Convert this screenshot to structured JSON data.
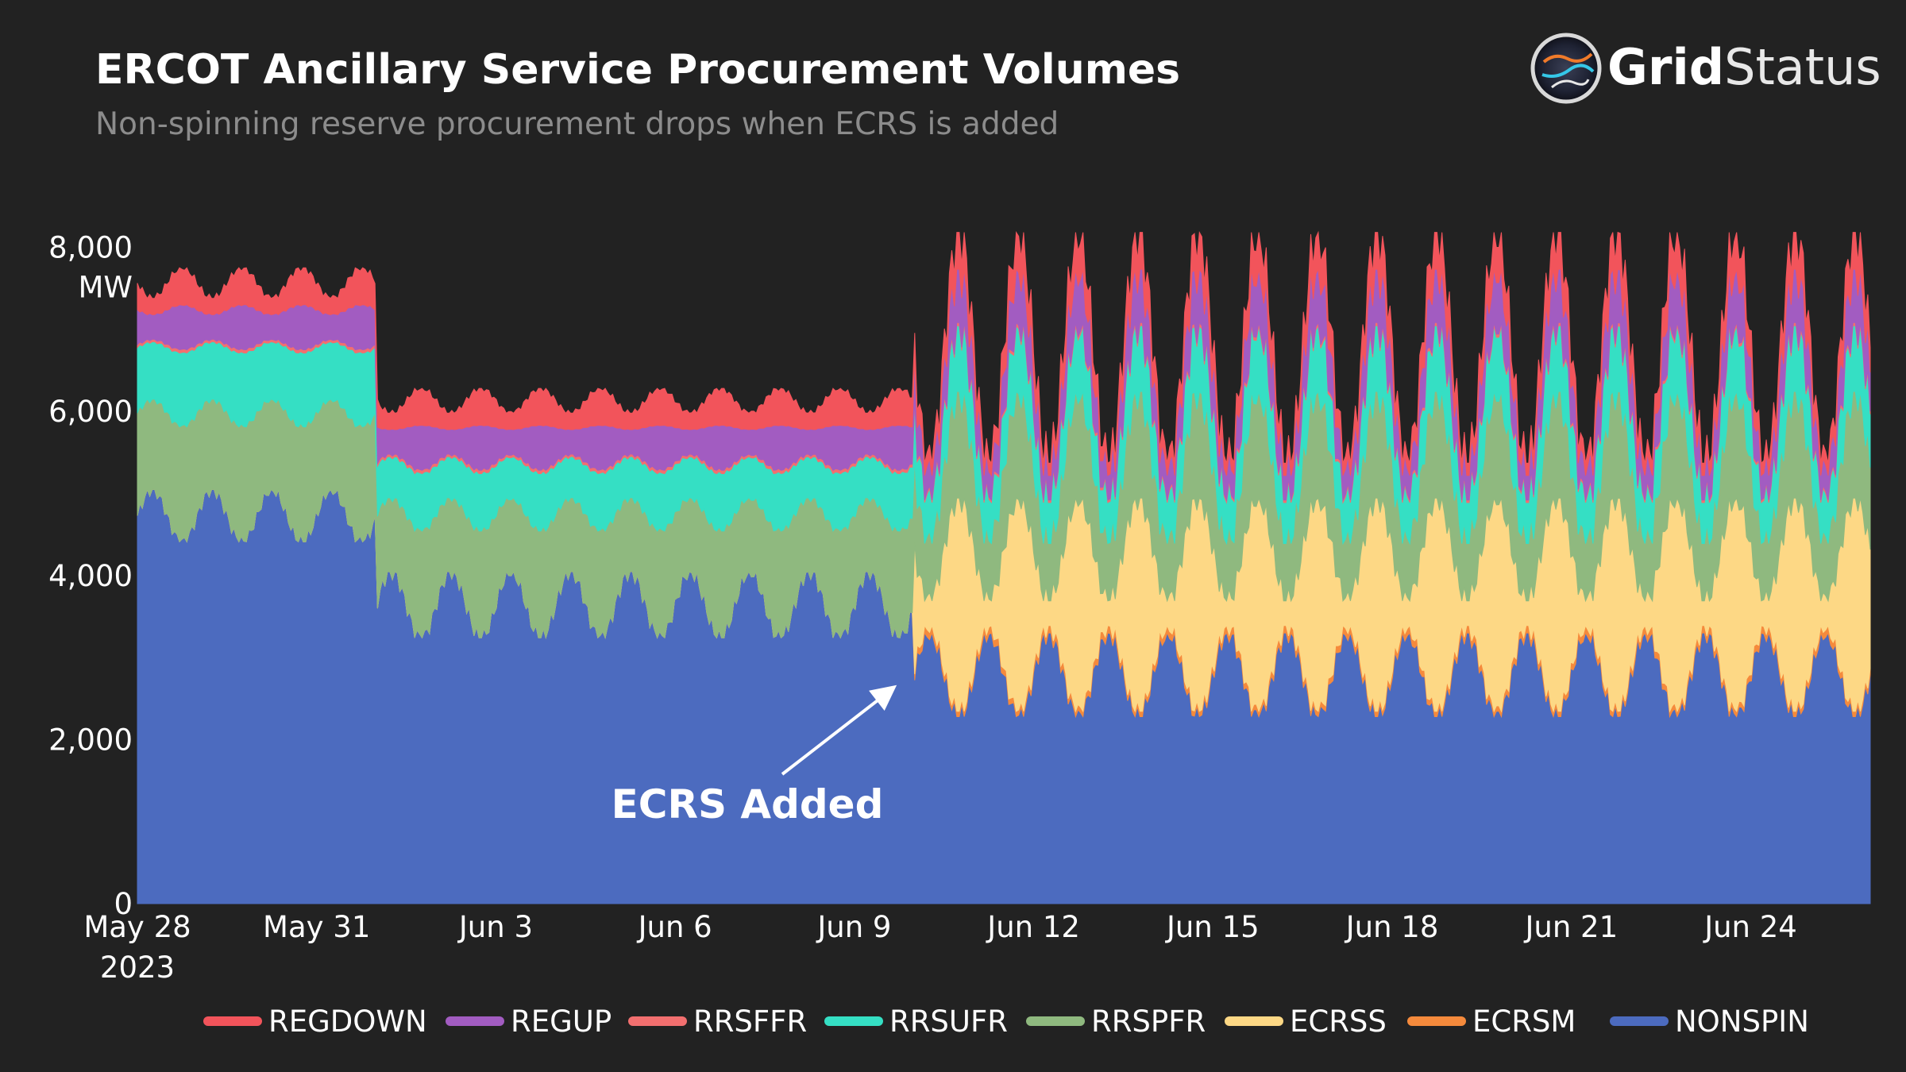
{
  "header": {
    "title": "ERCOT Ancillary Service Procurement Volumes",
    "subtitle": "Non-spinning reserve procurement drops when ECRS is added",
    "logo_bold": "Grid",
    "logo_light": "Status"
  },
  "chart_data": {
    "type": "area",
    "title": "ERCOT Ancillary Service Procurement Volumes",
    "subtitle": "Non-spinning reserve procurement drops when ECRS is added",
    "ylabel": "MW",
    "ylim": [
      0,
      8500
    ],
    "yticks": [
      {
        "value": 0,
        "label": "0"
      },
      {
        "value": 2000,
        "label": "2,000"
      },
      {
        "value": 4000,
        "label": "4,000"
      },
      {
        "value": 6000,
        "label": "6,000"
      },
      {
        "value": 8000,
        "label": "8,000"
      }
    ],
    "y_unit_label": "MW",
    "x_start_day": 0,
    "x_end_day": 29,
    "xticks": [
      {
        "day": 0,
        "label": "May 28",
        "sublabel": "2023"
      },
      {
        "day": 3,
        "label": "May 31"
      },
      {
        "day": 6,
        "label": "Jun 3"
      },
      {
        "day": 9,
        "label": "Jun 6"
      },
      {
        "day": 12,
        "label": "Jun 9"
      },
      {
        "day": 15,
        "label": "Jun 12"
      },
      {
        "day": 18,
        "label": "Jun 15"
      },
      {
        "day": 21,
        "label": "Jun 18"
      },
      {
        "day": 24,
        "label": "Jun 21"
      },
      {
        "day": 27,
        "label": "Jun 24"
      }
    ],
    "stack_order_bottom_to_top": [
      "NONSPIN",
      "ECRSM",
      "ECRSS",
      "RRSPFR",
      "RRSUFR",
      "RRSFFR",
      "REGUP",
      "REGDOWN"
    ],
    "series": [
      {
        "name": "NONSPIN",
        "color": "#4c6bbf",
        "regimes": [
          {
            "from_day": 0,
            "to_day": 4,
            "min": 4300,
            "max": 5050
          },
          {
            "from_day": 4,
            "to_day": 13,
            "min": 3100,
            "max": 4050
          },
          {
            "from_day": 13,
            "to_day": 29,
            "min": 2100,
            "max": 3300
          }
        ]
      },
      {
        "name": "ECRSM",
        "color": "#f58a3c",
        "regimes": [
          {
            "from_day": 0,
            "to_day": 13,
            "min": 0,
            "max": 0
          },
          {
            "from_day": 13,
            "to_day": 29,
            "min": 60,
            "max": 90
          }
        ]
      },
      {
        "name": "ECRSS",
        "color": "#fdd885",
        "regimes": [
          {
            "from_day": 0,
            "to_day": 13,
            "min": 0,
            "max": 0
          },
          {
            "from_day": 13,
            "to_day": 29,
            "min": 300,
            "max": 2600
          }
        ]
      },
      {
        "name": "RRSPFR",
        "color": "#8fb97f",
        "regimes": [
          {
            "from_day": 0,
            "to_day": 4,
            "min": 1100,
            "max": 1400
          },
          {
            "from_day": 4,
            "to_day": 13,
            "min": 900,
            "max": 1300
          },
          {
            "from_day": 13,
            "to_day": 29,
            "min": 700,
            "max": 1300
          }
        ]
      },
      {
        "name": "RRSUFR",
        "color": "#35dfc4",
        "regimes": [
          {
            "from_day": 0,
            "to_day": 4,
            "min": 700,
            "max": 900
          },
          {
            "from_day": 4,
            "to_day": 13,
            "min": 500,
            "max": 700
          },
          {
            "from_day": 13,
            "to_day": 29,
            "min": 500,
            "max": 800
          }
        ]
      },
      {
        "name": "RRSFFR",
        "color": "#f26f6f",
        "regimes": [
          {
            "from_day": 0,
            "to_day": 4,
            "min": 30,
            "max": 40
          },
          {
            "from_day": 4,
            "to_day": 13,
            "min": 30,
            "max": 40
          },
          {
            "from_day": 13,
            "to_day": 29,
            "min": 30,
            "max": 40
          }
        ]
      },
      {
        "name": "REGUP",
        "color": "#a25cc1",
        "regimes": [
          {
            "from_day": 0,
            "to_day": 4,
            "min": 300,
            "max": 550
          },
          {
            "from_day": 4,
            "to_day": 13,
            "min": 300,
            "max": 550
          },
          {
            "from_day": 13,
            "to_day": 29,
            "min": 300,
            "max": 650
          }
        ]
      },
      {
        "name": "REGDOWN",
        "color": "#f2545b",
        "regimes": [
          {
            "from_day": 0,
            "to_day": 4,
            "min": 200,
            "max": 450
          },
          {
            "from_day": 4,
            "to_day": 13,
            "min": 200,
            "max": 450
          },
          {
            "from_day": 13,
            "to_day": 29,
            "min": 150,
            "max": 450
          }
        ]
      }
    ],
    "annotation": {
      "text": "ECRS Added",
      "arrow_to_day": 13,
      "arrow_to_value": 2800
    },
    "legend_order": [
      "REGDOWN",
      "REGUP",
      "RRSFFR",
      "RRSUFR",
      "RRSPFR",
      "ECRSS",
      "ECRSM",
      "NONSPIN"
    ],
    "legend_placement": "bottom-center"
  }
}
